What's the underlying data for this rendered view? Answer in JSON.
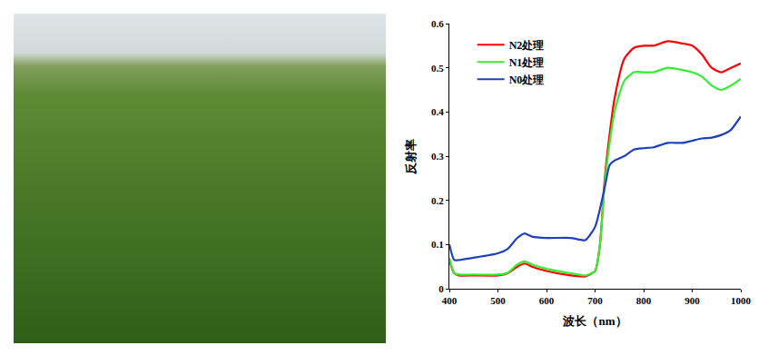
{
  "chart_data": {
    "type": "line",
    "x_label": "波长（nm）",
    "y_label": "反射率",
    "x": [
      400,
      410,
      420,
      450,
      500,
      520,
      540,
      555,
      570,
      600,
      650,
      680,
      700,
      710,
      720,
      730,
      740,
      760,
      780,
      800,
      820,
      850,
      880,
      900,
      920,
      940,
      960,
      980,
      1000
    ],
    "series": [
      {
        "name": "N2处理",
        "color": "#ff0000",
        "values": [
          0.065,
          0.035,
          0.03,
          0.03,
          0.03,
          0.035,
          0.05,
          0.057,
          0.05,
          0.04,
          0.03,
          0.028,
          0.04,
          0.1,
          0.25,
          0.35,
          0.43,
          0.52,
          0.545,
          0.55,
          0.55,
          0.56,
          0.555,
          0.55,
          0.53,
          0.5,
          0.49,
          0.5,
          0.51
        ]
      },
      {
        "name": "N1处理",
        "color": "#33ee33",
        "values": [
          0.07,
          0.035,
          0.032,
          0.032,
          0.032,
          0.036,
          0.055,
          0.062,
          0.055,
          0.045,
          0.035,
          0.03,
          0.04,
          0.1,
          0.24,
          0.33,
          0.4,
          0.47,
          0.49,
          0.49,
          0.49,
          0.5,
          0.495,
          0.49,
          0.48,
          0.46,
          0.45,
          0.46,
          0.475
        ]
      },
      {
        "name": "N0处理",
        "color": "#1f3fbf",
        "values": [
          0.1,
          0.065,
          0.065,
          0.07,
          0.08,
          0.09,
          0.115,
          0.125,
          0.118,
          0.115,
          0.115,
          0.11,
          0.14,
          0.18,
          0.23,
          0.28,
          0.29,
          0.3,
          0.315,
          0.318,
          0.32,
          0.33,
          0.33,
          0.335,
          0.34,
          0.342,
          0.348,
          0.36,
          0.39
        ]
      }
    ],
    "xlim": [
      400,
      1000
    ],
    "xticks": [
      400,
      500,
      600,
      700,
      800,
      900,
      1000
    ],
    "ylim": [
      0,
      0.6
    ],
    "yticks": [
      0,
      0.1,
      0.2,
      0.3,
      0.4,
      0.5,
      0.6
    ],
    "grid": false,
    "legend": "upper left"
  }
}
